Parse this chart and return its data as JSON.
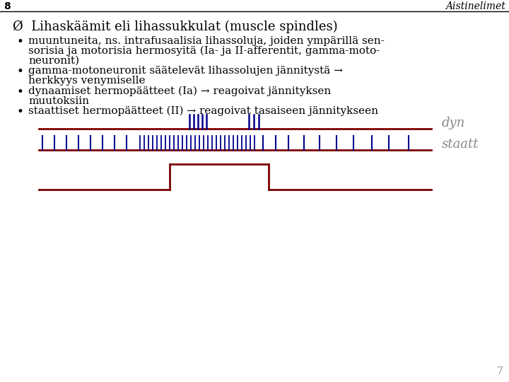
{
  "bg_color": "#ffffff",
  "slide_number": "8",
  "title_right": "Aistinelimet",
  "main_bullet": "Ø  Lihaskäämit eli lihassukkulat (muscle spindles)",
  "bullet1_line1": "muuntuneita, ns. intrafusaalisia lihassoluja, joiden ympärillä sen-",
  "bullet1_line2": "sorisia ja motorisia hermosyitä (Ia- ja II-afferentit, gamma-moto-",
  "bullet1_line3": "neuronit)",
  "bullet2_line1": "gamma-motoneuronit säätelevät lihassolujen jännitystä →",
  "bullet2_line2": "herkkyys venymiselle",
  "bullet3_line1": "dynaamiset hermopäätteet (Ia) → reagoivat jännityksen",
  "bullet3_line2": "muutoksiin",
  "bullet4_line1": "staattiset hermopäätteet (II) → reagoivat tasaiseen jännitykseen",
  "dark_red": "#7B0000",
  "dark_blue": "#00008B",
  "page_number": "7",
  "dyn_label": "dyn",
  "staatt_label": "staatt",
  "text_color": "#555555",
  "label_color": "#888888"
}
